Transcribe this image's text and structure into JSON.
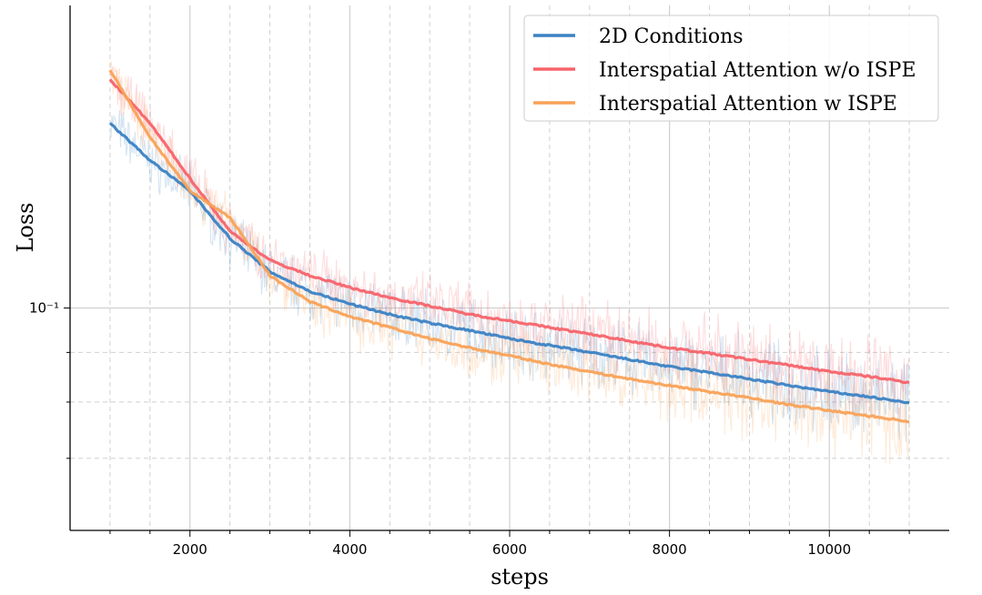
{
  "chart_data": {
    "type": "line",
    "title": "",
    "xlabel": "steps",
    "ylabel": "Loss",
    "yscale": "log",
    "xlim": [
      500,
      11500
    ],
    "ylim": [
      0.059,
      0.205
    ],
    "x_ticks": [
      2000,
      4000,
      6000,
      8000,
      10000
    ],
    "x_tick_labels": [
      "2000",
      "4000",
      "6000",
      "8000",
      "10000"
    ],
    "y_major_ticks": [
      {
        "value": 0.1,
        "label": "10⁻¹"
      }
    ],
    "y_minor_ticks": [
      0.09,
      0.08,
      0.07
    ],
    "x_minor_step": 500,
    "grid": true,
    "legend_position": "top-right",
    "x": [
      1000,
      1500,
      2000,
      2500,
      3000,
      3500,
      4000,
      4500,
      5000,
      5500,
      6000,
      6500,
      7000,
      7500,
      8000,
      8500,
      9000,
      9500,
      10000,
      10500,
      11000
    ],
    "series": [
      {
        "name": "2D Conditions",
        "color": "#3b82c4",
        "values": [
          0.155,
          0.142,
          0.132,
          0.118,
          0.109,
          0.104,
          0.101,
          0.0985,
          0.0965,
          0.0948,
          0.093,
          0.0915,
          0.09,
          0.0885,
          0.087,
          0.0858,
          0.0845,
          0.0832,
          0.082,
          0.081,
          0.0798
        ]
      },
      {
        "name": "Interspatial Attention w/o ISPE",
        "color": "#f7636a",
        "values": [
          0.172,
          0.155,
          0.136,
          0.12,
          0.112,
          0.108,
          0.105,
          0.1025,
          0.1005,
          0.0985,
          0.097,
          0.0955,
          0.094,
          0.0925,
          0.091,
          0.0898,
          0.0885,
          0.0873,
          0.086,
          0.085,
          0.0838
        ]
      },
      {
        "name": "Interspatial Attention w ISPE",
        "color": "#f9a257",
        "values": [
          0.176,
          0.15,
          0.132,
          0.124,
          0.108,
          0.1015,
          0.098,
          0.0955,
          0.093,
          0.091,
          0.0893,
          0.0875,
          0.086,
          0.0845,
          0.0832,
          0.082,
          0.0808,
          0.0795,
          0.0784,
          0.0774,
          0.0764
        ]
      }
    ]
  }
}
